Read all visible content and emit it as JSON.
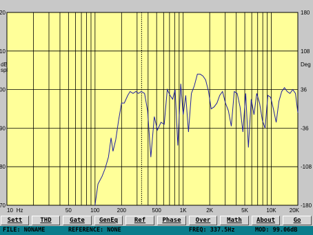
{
  "chart_data": {
    "type": "line",
    "x_scale": "log",
    "xlim": [
      10,
      20000
    ],
    "ylim": [
      70,
      120
    ],
    "y2lim": [
      -180,
      180
    ],
    "y_label": "dB\nspl",
    "y2_label": "Deg",
    "x_ticks": [
      {
        "value": 10,
        "label": "10"
      },
      {
        "value": 14,
        "label": "Hz"
      },
      {
        "value": 50,
        "label": "50"
      },
      {
        "value": 100,
        "label": "100"
      },
      {
        "value": 200,
        "label": "200"
      },
      {
        "value": 500,
        "label": "500"
      },
      {
        "value": 1000,
        "label": "1K"
      },
      {
        "value": 2000,
        "label": "2K"
      },
      {
        "value": 5000,
        "label": "5K"
      },
      {
        "value": 10000,
        "label": "10K"
      },
      {
        "value": 20000,
        "label": "20K"
      }
    ],
    "y_ticks": [
      70,
      80,
      90,
      100,
      110,
      120
    ],
    "y2_ticks": [
      -180,
      -108,
      -36,
      36,
      108,
      180
    ],
    "marker_freq": 337.5,
    "grid": true,
    "series": [
      {
        "color": "#2020a0",
        "x": [
          100,
          108,
          120,
          130,
          142,
          152,
          160,
          172,
          185,
          200,
          215,
          235,
          250,
          270,
          290,
          310,
          335,
          365,
          395,
          430,
          470,
          510,
          560,
          610,
          660,
          710,
          760,
          810,
          870,
          940,
          1000,
          1070,
          1150,
          1240,
          1340,
          1450,
          1560,
          1680,
          1800,
          1940,
          2080,
          2240,
          2420,
          2600,
          2800,
          3020,
          3260,
          3520,
          3800,
          4100,
          4420,
          4760,
          5120,
          5500,
          5920,
          6360,
          6840,
          7360,
          7920,
          8500,
          9140,
          9830,
          10560,
          11360,
          12200,
          13120,
          14100,
          15150,
          16290,
          17510,
          18820,
          20000
        ],
        "y": [
          70.0,
          75.5,
          77.5,
          79.5,
          82.5,
          87.5,
          84.0,
          87.0,
          92.0,
          96.5,
          96.5,
          98.5,
          99.5,
          99.0,
          99.5,
          99.0,
          99.5,
          99.0,
          94.5,
          82.5,
          93.0,
          89.5,
          91.5,
          91.0,
          100.0,
          98.5,
          97.5,
          100.0,
          85.5,
          101.5,
          93.5,
          98.5,
          89.0,
          99.0,
          101.0,
          104.0,
          104.0,
          103.5,
          102.5,
          99.5,
          95.0,
          95.5,
          96.5,
          98.5,
          99.5,
          96.5,
          94.5,
          90.5,
          99.5,
          99.0,
          95.5,
          89.0,
          99.0,
          85.0,
          97.5,
          93.5,
          99.0,
          96.5,
          92.0,
          90.0,
          98.5,
          98.0,
          95.0,
          91.5,
          97.0,
          99.5,
          100.5,
          99.5,
          99.0,
          100.0,
          99.0,
          94.0
        ]
      }
    ]
  },
  "toolbar": {
    "buttons": [
      "Sett",
      "THD",
      "Gate",
      "GenEq",
      "Ref",
      "Phase",
      "Over",
      "Math",
      "About",
      "Go"
    ]
  },
  "status": {
    "file": "FILE: NONAME",
    "reference": "REFERENCE: NONE",
    "freq": "FREQ: 337.5Hz",
    "mod": "MOD: 99.06dB"
  },
  "colors": {
    "plot_bg": "#ffff99",
    "grid": "#000000",
    "curve": "#2020a0",
    "status_bg": "#0a7d8c",
    "window_bg": "#c8c8c8"
  }
}
